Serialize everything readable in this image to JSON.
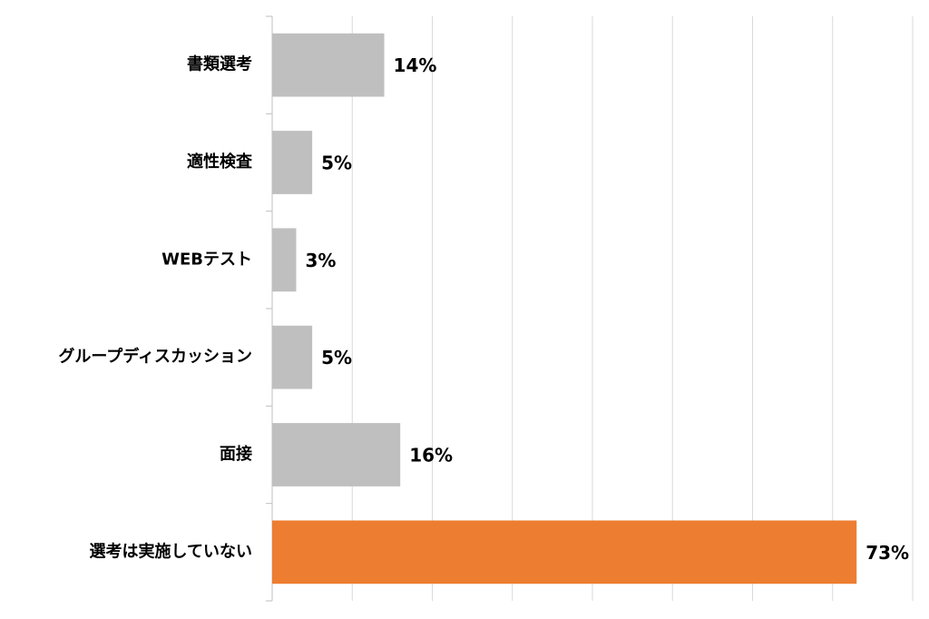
{
  "chart_data": {
    "type": "barh",
    "categories": [
      "書類選考",
      "適性検査",
      "WEBテスト",
      "グループディスカッション",
      "面接",
      "選考は実施していない"
    ],
    "values": [
      14,
      5,
      3,
      5,
      16,
      73
    ],
    "value_labels": [
      "14%",
      "5%",
      "3%",
      "5%",
      "16%",
      "73%"
    ],
    "colors": [
      "#bfbfbf",
      "#bfbfbf",
      "#bfbfbf",
      "#bfbfbf",
      "#bfbfbf",
      "#ed7d31"
    ],
    "xlim": [
      0,
      80
    ],
    "xticks": [
      0,
      10,
      20,
      30,
      40,
      50,
      60,
      70,
      80
    ],
    "grid": true
  }
}
